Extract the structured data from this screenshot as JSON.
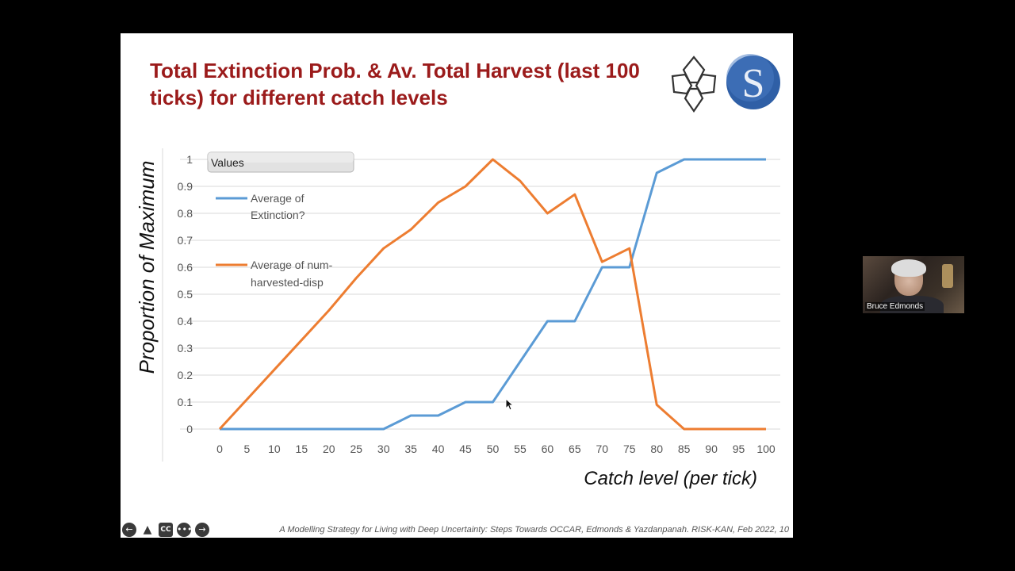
{
  "slide": {
    "title": "Total Extinction Prob. & Av. Total Harvest (last 100 ticks) for different catch levels",
    "footer": "A Modelling Strategy for Living with Deep Uncertainty: Steps Towards OCCAR, Edmonds & Yazdanpanah. RISK-KAN, Feb 2022, 10",
    "controls": [
      {
        "name": "prev-slide-button",
        "glyph": "←"
      },
      {
        "name": "pen-tool-button",
        "glyph": "▲"
      },
      {
        "name": "captions-button",
        "glyph": "CC"
      },
      {
        "name": "more-options-button",
        "glyph": "•••"
      },
      {
        "name": "next-slide-button",
        "glyph": "→"
      }
    ],
    "logo_letter": "S"
  },
  "video": {
    "participant_name": "Bruce Edmonds"
  },
  "chart_data": {
    "type": "line",
    "xlabel": "Catch level (per tick)",
    "ylabel": "Proportion of Maximum",
    "filter_button": "Values",
    "x": [
      0,
      5,
      10,
      15,
      20,
      25,
      30,
      35,
      40,
      45,
      50,
      55,
      60,
      65,
      70,
      75,
      80,
      85,
      90,
      95,
      100
    ],
    "ylim": [
      0,
      1
    ],
    "yticks": [
      "0",
      "0.1",
      "0.2",
      "0.3",
      "0.4",
      "0.5",
      "0.6",
      "0.7",
      "0.8",
      "0.9",
      "1"
    ],
    "grid": true,
    "legend_position": "top-left",
    "series": [
      {
        "name_line1": "Average of",
        "name_line2": "Extinction?",
        "color": "#5b9bd5",
        "values": [
          0,
          0,
          0,
          0,
          0,
          0,
          0,
          0.05,
          0.05,
          0.1,
          0.1,
          0.25,
          0.4,
          0.4,
          0.6,
          0.6,
          0.95,
          1,
          1,
          1,
          1
        ]
      },
      {
        "name_line1": "Average of num-",
        "name_line2": "harvested-disp",
        "color": "#ed7d31",
        "values": [
          0,
          0.11,
          0.22,
          0.33,
          0.44,
          0.56,
          0.67,
          0.74,
          0.84,
          0.9,
          1.0,
          0.92,
          0.8,
          0.87,
          0.62,
          0.67,
          0.09,
          0,
          0,
          0,
          0
        ]
      }
    ]
  }
}
